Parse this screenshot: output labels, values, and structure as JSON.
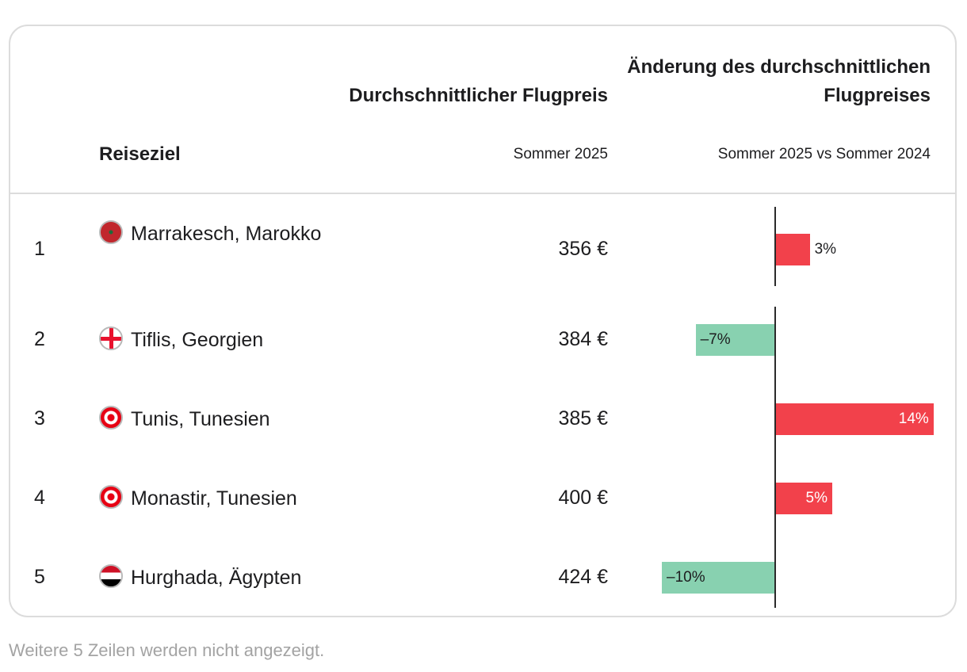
{
  "headers": {
    "destination": "Reiseziel",
    "price_title": "Durchschnittlicher Flugpreis",
    "price_sub": "Sommer 2025",
    "change_title": "Änderung des durchschnittlichen Flugpreises",
    "change_sub": "Sommer 2025 vs Sommer 2024"
  },
  "rows": [
    {
      "rank": "1",
      "destination": "Marrakesch, Marokko",
      "price": "356 €",
      "change_label": "3%",
      "flag": "morocco-flag"
    },
    {
      "rank": "2",
      "destination": "Tiflis, Georgien",
      "price": "384 €",
      "change_label": "–7%",
      "flag": "georgia-flag"
    },
    {
      "rank": "3",
      "destination": "Tunis, Tunesien",
      "price": "385 €",
      "change_label": "14%",
      "flag": "tunisia-flag"
    },
    {
      "rank": "4",
      "destination": "Monastir, Tunesien",
      "price": "400 €",
      "change_label": "5%",
      "flag": "tunisia-flag"
    },
    {
      "rank": "5",
      "destination": "Hurghada, Ägypten",
      "price": "424 €",
      "change_label": "–10%",
      "flag": "egypt-flag"
    }
  ],
  "footer": "Weitere 5 Zeilen werden nicht angezeigt.",
  "colors": {
    "increase": "#f2414b",
    "decrease": "#88d1b0"
  },
  "chart_data": {
    "type": "bar",
    "title": "Änderung des durchschnittlichen Flugpreises",
    "subtitle": "Sommer 2025 vs Sommer 2024",
    "categories": [
      "Marrakesch, Marokko",
      "Tiflis, Georgien",
      "Tunis, Tunesien",
      "Monastir, Tunesien",
      "Hurghada, Ägypten"
    ],
    "values": [
      3,
      -7,
      14,
      5,
      -10
    ],
    "unit": "%",
    "xlim": [
      -10,
      14
    ]
  }
}
